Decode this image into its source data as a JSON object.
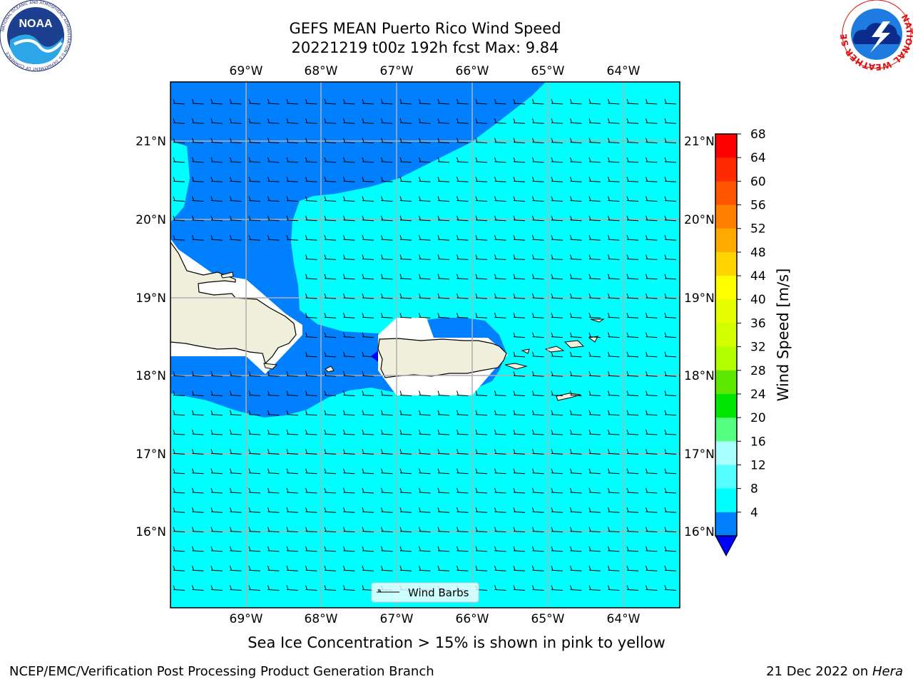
{
  "header": {
    "title_line1": "GEFS MEAN Puerto Rico Wind Speed",
    "title_line2": "20221219 t00z 192h fcst   Max: 9.84"
  },
  "logos": {
    "left": {
      "name": "NOAA",
      "ring_text": "NATIONAL OCEANIC AND ATMOSPHERIC ADMINISTRATION  U.S. DEPARTMENT OF COMMERCE"
    },
    "right": {
      "ring_text": "NATIONAL WEATHER SERVICE"
    }
  },
  "map": {
    "lon_labels": [
      "69°W",
      "68°W",
      "67°W",
      "66°W",
      "65°W",
      "64°W"
    ],
    "lat_labels": [
      "21°N",
      "20°N",
      "19°N",
      "18°N",
      "17°N",
      "16°N"
    ],
    "legend_label": "Wind Barbs"
  },
  "colorbar": {
    "label": "Wind Speed [m/s]",
    "ticks": [
      "68",
      "64",
      "60",
      "56",
      "52",
      "48",
      "44",
      "40",
      "36",
      "32",
      "28",
      "24",
      "20",
      "16",
      "12",
      "8",
      "4"
    ],
    "colors": [
      "#ff0000",
      "#ff2a00",
      "#ff5500",
      "#ff7f00",
      "#ffaa00",
      "#ffd400",
      "#ffff00",
      "#e5ff00",
      "#d4ff00",
      "#b3ff00",
      "#5ce600",
      "#00e600",
      "#55ff7f",
      "#aaffff",
      "#55ffff",
      "#00ffff",
      "#0080ff"
    ],
    "extend_min_color": "#0000ff"
  },
  "colors": {
    "light_cyan": "#00ffff",
    "medium_blue": "#0080ff",
    "land": "#efefdc"
  },
  "subtitle": "Sea Ice Concentration > 15% is shown in pink to yellow",
  "footer": {
    "left": "NCEP/EMC/Verification Post Processing Product Generation Branch",
    "right_prefix": "21 Dec 2022 on ",
    "right_host": "Hera"
  }
}
